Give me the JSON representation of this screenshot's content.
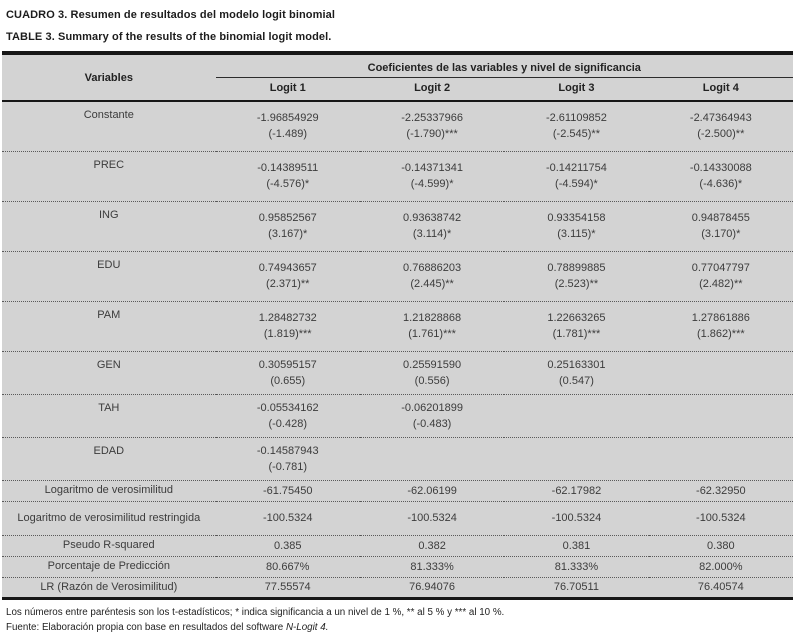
{
  "titles": {
    "spanish": "CUADRO 3. Resumen de resultados del modelo logit binomial",
    "english": "TABLE 3. Summary of the results of the binomial logit model."
  },
  "table": {
    "variables_header": "Variables",
    "group_header": "Coeficientes de las variables y nivel de significancia",
    "columns": [
      "Logit 1",
      "Logit 2",
      "Logit 3",
      "Logit 4"
    ],
    "coef_rows": [
      {
        "label": "Constante",
        "values": [
          "-1.96854929",
          "-2.25337966",
          "-2.61109852",
          "-2.47364943"
        ],
        "tstats": [
          "(-1.489)",
          "(-1.790)***",
          "(-2.545)**",
          "(-2.500)**"
        ]
      },
      {
        "label": "PREC",
        "values": [
          "-0.14389511",
          "-0.14371341",
          "-0.14211754",
          "-0.14330088"
        ],
        "tstats": [
          "(-4.576)*",
          "(-4.599)*",
          "(-4.594)*",
          "(-4.636)*"
        ]
      },
      {
        "label": "ING",
        "values": [
          "0.95852567",
          "0.93638742",
          "0.93354158",
          "0.94878455"
        ],
        "tstats": [
          "(3.167)*",
          "(3.114)*",
          "(3.115)*",
          "(3.170)*"
        ]
      },
      {
        "label": "EDU",
        "values": [
          "0.74943657",
          "0.76886203",
          "0.78899885",
          "0.77047797"
        ],
        "tstats": [
          "(2.371)**",
          "(2.445)**",
          "(2.523)**",
          "(2.482)**"
        ]
      },
      {
        "label": "PAM",
        "values": [
          "1.28482732",
          "1.21828868",
          "1.22663265",
          "1.27861886"
        ],
        "tstats": [
          "(1.819)***",
          "(1.761)***",
          "(1.781)***",
          "(1.862)***"
        ]
      },
      {
        "label": "GEN",
        "values": [
          "0.30595157",
          "0.25591590",
          "0.25163301",
          ""
        ],
        "tstats": [
          "(0.655)",
          "(0.556)",
          "(0.547)",
          ""
        ]
      },
      {
        "label": "TAH",
        "values": [
          "-0.05534162",
          "-0.06201899",
          "",
          ""
        ],
        "tstats": [
          "(-0.428)",
          "(-0.483)",
          "",
          ""
        ]
      },
      {
        "label": "EDAD",
        "values": [
          "-0.14587943",
          "",
          "",
          ""
        ],
        "tstats": [
          "(-0.781)",
          "",
          "",
          ""
        ]
      }
    ],
    "summary_rows": [
      {
        "label": "Logaritmo de verosimilitud",
        "values": [
          "-61.75450",
          "-62.06199",
          "-62.17982",
          "-62.32950"
        ]
      },
      {
        "label": "Logaritmo de verosimilitud restringida",
        "values": [
          "-100.5324",
          "-100.5324",
          "-100.5324",
          "-100.5324"
        ]
      },
      {
        "label": "Pseudo R-squared",
        "values": [
          "0.385",
          "0.382",
          "0.381",
          "0.380"
        ]
      },
      {
        "label": "Porcentaje de Predicción",
        "values": [
          "80.667%",
          "81.333%",
          "81.333%",
          "82.000%"
        ]
      },
      {
        "label": "LR (Razón de Verosimilitud)",
        "values": [
          "77.55574",
          "76.94076",
          "76.70511",
          "76.40574"
        ]
      }
    ]
  },
  "footnotes": {
    "note": "Los números entre paréntesis son los t-estadísticos; * indica significancia a un nivel de 1 %, ** al 5 % y *** al 10 %.",
    "source_prefix": "Fuente: Elaboración propia con base en resultados del software ",
    "source_italic": "N-Logit 4."
  },
  "colors": {
    "table_background": "#d3d3d3",
    "border": "#171717",
    "body_text": "#3c3c3c"
  }
}
